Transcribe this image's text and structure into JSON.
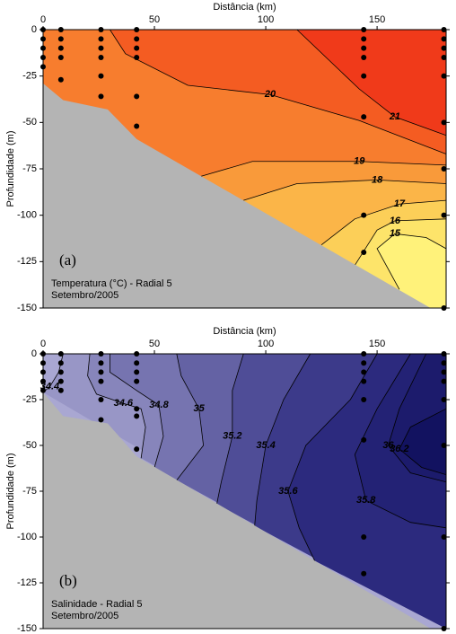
{
  "chart_data": [
    {
      "type": "contour",
      "panel_label": "(a)",
      "title": "Temperatura  (°C) - Radial 5",
      "subtitle": "Setembro/2005",
      "x_label": "Distância (km)",
      "y_label": "Profundidade (m)",
      "xlim": [
        0,
        181
      ],
      "ylim": [
        -150,
        0
      ],
      "xticks": [
        0,
        50,
        100,
        150
      ],
      "yticks": [
        0,
        -25,
        -50,
        -75,
        -100,
        -125,
        -150
      ],
      "base_color": "#fff27a",
      "fill_side": "top-right",
      "contours": [
        {
          "level": 15,
          "color": "#fde46a",
          "x": [
            160,
            150,
            158,
            172,
            181
          ],
          "y": [
            -140,
            -118,
            -110,
            -112,
            -118
          ]
        },
        {
          "level": 16,
          "color": "#fccf58",
          "x": [
            140,
            150,
            158,
            181
          ],
          "y": [
            -127,
            -108,
            -103,
            -102
          ]
        },
        {
          "level": 17,
          "color": "#fbb548",
          "x": [
            125,
            140,
            160,
            181
          ],
          "y": [
            -116,
            -102,
            -94,
            -92
          ]
        },
        {
          "level": 18,
          "color": "#f99a3a",
          "x": [
            90,
            114,
            150,
            181
          ],
          "y": [
            -92,
            -83,
            -81,
            -83
          ]
        },
        {
          "level": 19,
          "color": "#f77d2e",
          "x": [
            71,
            94,
            142,
            181
          ],
          "y": [
            -79,
            -71,
            -71,
            -73
          ]
        },
        {
          "level": 20,
          "color": "#f45c22",
          "x": [
            30,
            37,
            65,
            102,
            142,
            181
          ],
          "y": [
            0,
            -13,
            -30,
            -35,
            -49,
            -67
          ]
        },
        {
          "level": 21,
          "color": "#f03a1a",
          "x": [
            114,
            142,
            158,
            181
          ],
          "y": [
            0,
            -32,
            -47,
            -57
          ]
        }
      ],
      "bathymetry": {
        "color": "#b4b4b4",
        "x": [
          0,
          9,
          29,
          42,
          174
        ],
        "y": [
          -29,
          -38,
          -43,
          -59,
          -150
        ]
      },
      "stations": {
        "x": [
          0,
          0,
          0,
          0,
          0,
          8,
          8,
          8,
          8,
          8,
          26,
          26,
          26,
          26,
          26,
          26,
          42,
          42,
          42,
          42,
          42,
          42,
          144,
          144,
          144,
          144,
          144,
          144,
          144,
          144,
          180,
          180,
          180,
          180,
          180,
          180,
          180,
          180,
          180
        ],
        "y": [
          0,
          -5,
          -10,
          -15,
          -20,
          0,
          -5,
          -10,
          -15,
          -27,
          0,
          -5,
          -10,
          -15,
          -25,
          -36,
          0,
          -5,
          -10,
          -15,
          -36,
          -52,
          0,
          -5,
          -10,
          -15,
          -25,
          -47,
          -100,
          -120,
          0,
          -5,
          -10,
          -15,
          -25,
          -50,
          -75,
          -100,
          -150
        ]
      }
    },
    {
      "type": "contour",
      "panel_label": "(b)",
      "title": "Salinidade - Radial 5",
      "subtitle": "Setembro/2005",
      "x_label": "Distância (km)",
      "y_label": "Profundidade (m)",
      "xlim": [
        0,
        181
      ],
      "ylim": [
        -150,
        0
      ],
      "xticks": [
        0,
        50,
        100,
        150
      ],
      "yticks": [
        0,
        -25,
        -50,
        -75,
        -100,
        -125,
        -150
      ],
      "base_color": "#a9a7d2",
      "fill_side": "bottom-right",
      "contours": [
        {
          "level": 34.4,
          "color": "#9896c6",
          "x": [
            9,
            7,
            3,
            0
          ],
          "y": [
            0,
            -10,
            -18,
            -21
          ]
        },
        {
          "level": 34.6,
          "color": "#8785bb",
          "x": [
            21,
            20,
            24,
            36,
            44,
            46,
            44
          ],
          "y": [
            0,
            -12,
            -22,
            -27,
            -30,
            -40,
            -57
          ]
        },
        {
          "level": 34.8,
          "color": "#7674b0",
          "x": [
            30,
            30,
            42,
            52,
            54,
            50
          ],
          "y": [
            0,
            -10,
            -20,
            -28,
            -45,
            -62
          ]
        },
        {
          "level": 35,
          "color": "#6462a4",
          "x": [
            60,
            62,
            70,
            72,
            60
          ],
          "y": [
            0,
            -12,
            -30,
            -50,
            -69
          ]
        },
        {
          "level": 35.2,
          "color": "#4f4d97",
          "x": [
            90,
            85,
            85,
            80,
            78
          ],
          "y": [
            0,
            -20,
            -45,
            -70,
            -82
          ]
        },
        {
          "level": 35.4,
          "color": "#3c3a8a",
          "x": [
            120,
            108,
            100,
            96,
            95
          ],
          "y": [
            0,
            -25,
            -50,
            -80,
            -94
          ]
        },
        {
          "level": 35.6,
          "color": "#2c2a7e",
          "x": [
            150,
            138,
            118,
            110,
            115,
            122
          ],
          "y": [
            0,
            -25,
            -50,
            -75,
            -95,
            -113
          ]
        },
        {
          "level": 35.8,
          "color": "#232275",
          "x": [
            165,
            150,
            140,
            145,
            165,
            181
          ],
          "y": [
            0,
            -30,
            -55,
            -80,
            -92,
            -95
          ]
        },
        {
          "level": 36,
          "color": "#1c1b6c",
          "x": [
            172,
            160,
            155,
            165,
            181
          ],
          "y": [
            0,
            -30,
            -50,
            -65,
            -70
          ]
        },
        {
          "level": 36.2,
          "color": "#121260",
          "x": [
            181,
            165,
            160,
            170,
            181
          ],
          "y": [
            -30,
            -40,
            -52,
            -62,
            -66
          ]
        }
      ],
      "bathymetry": {
        "color": "#b4b4b4",
        "x": [
          0,
          9,
          29,
          42,
          174
        ],
        "y": [
          -21,
          -34,
          -38,
          -56,
          -150
        ]
      },
      "stations": {
        "x": [
          0,
          0,
          0,
          0,
          0,
          8,
          8,
          8,
          8,
          8,
          26,
          26,
          26,
          26,
          26,
          26,
          42,
          42,
          42,
          42,
          42,
          42,
          42,
          144,
          144,
          144,
          144,
          144,
          144,
          144,
          144,
          180,
          180,
          180,
          180,
          180,
          180,
          180,
          180
        ],
        "y": [
          0,
          -5,
          -10,
          -15,
          -20,
          0,
          -5,
          -10,
          -15,
          -20,
          0,
          -5,
          -10,
          -15,
          -25,
          -36,
          0,
          -5,
          -10,
          -15,
          -30,
          -34,
          -52,
          0,
          -5,
          -10,
          -15,
          -25,
          -47,
          -100,
          -120,
          0,
          -5,
          -10,
          -15,
          -25,
          -50,
          -100,
          -150
        ]
      }
    }
  ]
}
